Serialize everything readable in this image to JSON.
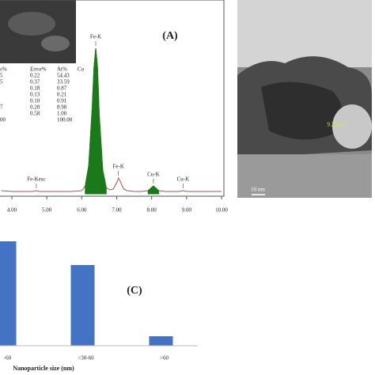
{
  "chart_data": [
    {
      "type": "line",
      "panel_label": "(A)",
      "x": [
        3.7,
        4.0,
        4.3,
        4.6,
        4.7,
        4.8,
        5.1,
        5.4,
        5.7,
        6.0,
        6.1,
        6.2,
        6.3,
        6.35,
        6.4,
        6.45,
        6.5,
        6.6,
        6.7,
        6.8,
        6.9,
        7.0,
        7.05,
        7.1,
        7.2,
        7.3,
        7.5,
        7.7,
        7.9,
        8.0,
        8.05,
        8.1,
        8.2,
        8.4,
        8.6,
        8.8,
        8.9,
        9.0,
        9.2,
        9.5,
        9.8,
        10.0
      ],
      "series": [
        {
          "color": "#b05050",
          "values": [
            2,
            1.5,
            1.5,
            1.5,
            2,
            1.5,
            1.5,
            1.5,
            1.5,
            2,
            5,
            18,
            55,
            80,
            92,
            80,
            50,
            15,
            4,
            2.5,
            3,
            7,
            10,
            8,
            3,
            2,
            1.5,
            1.5,
            2,
            4,
            5,
            4,
            2,
            1.5,
            1.5,
            1.5,
            2,
            1.5,
            1.5,
            1.5,
            1.5,
            1.5
          ]
        },
        {
          "color": "#1a7a1a",
          "values": [
            null,
            null,
            null,
            null,
            null,
            null,
            null,
            null,
            null,
            null,
            5,
            18,
            55,
            80,
            92,
            80,
            50,
            15,
            4,
            null,
            null,
            null,
            null,
            null,
            null,
            null,
            null,
            null,
            2,
            4,
            5,
            4,
            2,
            null,
            null,
            null,
            null,
            null,
            null,
            null,
            null,
            null
          ]
        }
      ],
      "xlim": [
        3.66,
        10
      ],
      "ylim": [
        0,
        100
      ],
      "xticks": [
        {
          "value": 4,
          "label": "4.00"
        },
        {
          "value": 5,
          "label": "5.00"
        },
        {
          "value": 6,
          "label": "6.00"
        },
        {
          "value": 7,
          "label": "7.00"
        },
        {
          "value": 8,
          "label": "8.00"
        },
        {
          "value": 9,
          "label": "9.00"
        },
        {
          "value": 10,
          "label": "10.00"
        }
      ],
      "annotations": [
        {
          "text": "Fe-Kesc",
          "x": 4.7
        },
        {
          "text": "Fe-K",
          "x": 6.4
        },
        {
          "text": "Fe-K",
          "x": 7.05
        },
        {
          "text": "Cu-K",
          "x": 8.05
        },
        {
          "text": "Cu-K",
          "x": 8.9
        }
      ],
      "inset_table": {
        "header": [
          "s%",
          "Error%",
          "At%",
          "Co"
        ],
        "rows": [
          [
            "5",
            "0.22",
            "54.43"
          ],
          [
            "5",
            "0.37",
            "33.59"
          ],
          [
            null,
            "0.18",
            "0.87"
          ],
          [
            null,
            "0.13",
            "0.21"
          ],
          [
            null,
            "0.10",
            "0.91"
          ],
          [
            "7",
            "0.28",
            "8.98"
          ],
          [
            null,
            "0.58",
            "1.00"
          ],
          [
            "00",
            null,
            "100.00"
          ]
        ]
      }
    },
    {
      "type": "image",
      "annotations": [
        "9.23 nm",
        "10 nm"
      ]
    },
    {
      "type": "bar",
      "panel_label": "(C)",
      "x_label": "Nanoparticle size (nm)",
      "categories": [
        "-60",
        ">30-60",
        ">60"
      ],
      "values": [
        44,
        34,
        4
      ],
      "color": "#4472c4",
      "ylim": [
        0,
        50
      ]
    }
  ]
}
